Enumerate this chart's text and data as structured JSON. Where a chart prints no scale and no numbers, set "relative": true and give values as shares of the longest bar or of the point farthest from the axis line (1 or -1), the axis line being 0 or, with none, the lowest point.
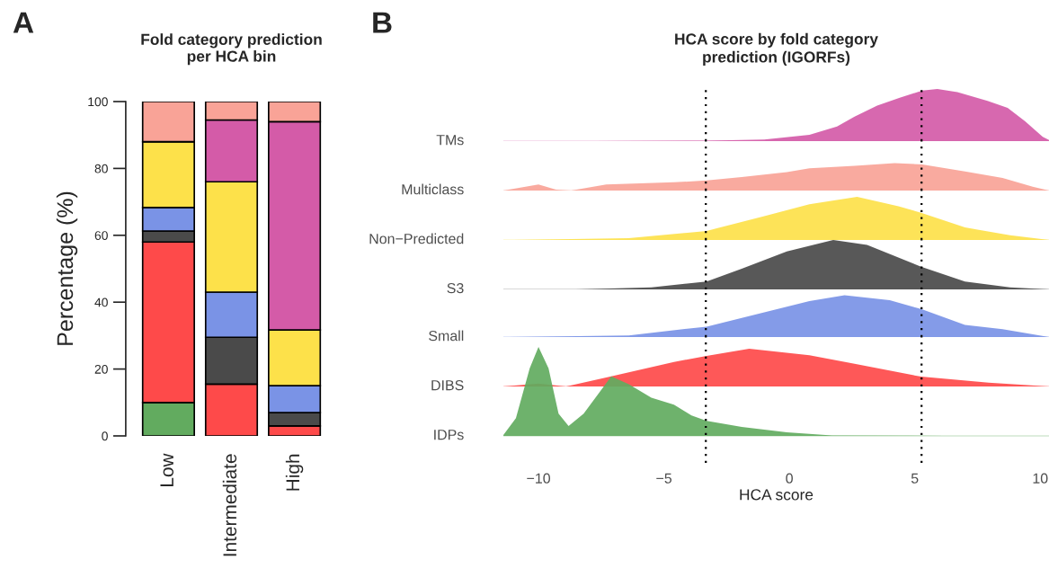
{
  "chart_data": [
    {
      "type": "bar",
      "title": "Fold category prediction\nper HCA bin",
      "ylabel": "Percentage (%)",
      "annotations": [
        "A"
      ],
      "stacked": true,
      "categories": [
        "Low",
        "Intermediate",
        "High"
      ],
      "ylim": [
        0,
        100
      ],
      "yticks": [
        0,
        20,
        40,
        60,
        80,
        100
      ],
      "series": [
        {
          "color": "#62ab5f",
          "values": [
            10,
            0,
            0
          ]
        },
        {
          "color": "#fe4a4a",
          "values": [
            48,
            15.5,
            3
          ]
        },
        {
          "color": "#4a4a4a",
          "values": [
            3.3,
            14,
            4
          ]
        },
        {
          "color": "#7a93e6",
          "values": [
            7,
            13.5,
            8
          ]
        },
        {
          "color": "#fde14a",
          "values": [
            19.7,
            33,
            16.7
          ]
        },
        {
          "color": "#d45ba8",
          "values": [
            0,
            18.5,
            62.3
          ]
        },
        {
          "color": "#f9a397",
          "values": [
            12,
            5.5,
            6
          ]
        }
      ]
    },
    {
      "type": "area",
      "relative": true,
      "title": "HCA score by fold category\nprediction (IGORFs)",
      "annotations": [
        "B"
      ],
      "xlim": [
        -11.4,
        10.35
      ],
      "tick_labels": false,
      "ref_lines": [
        {
          "axis": "x",
          "value": -3.33,
          "line_style": "dotted"
        },
        {
          "axis": "x",
          "value": 5.27,
          "line_style": "dotted"
        }
      ],
      "series": [
        {
          "name": "TMs",
          "color": "#d45ba8",
          "x": [
            -7.8,
            -3.3,
            -1,
            0.8,
            1.9,
            2.6,
            3.5,
            4.4,
            5.3,
            5.9,
            6.7,
            7.9,
            8.7,
            9.4,
            10.1,
            10.35
          ],
          "values": [
            0,
            0.01,
            0.03,
            0.12,
            0.28,
            0.47,
            0.68,
            0.83,
            0.97,
            1,
            0.94,
            0.77,
            0.64,
            0.38,
            0.08,
            0.02
          ]
        }
      ]
    },
    {
      "type": "area",
      "relative": true,
      "xlim": [
        -11.4,
        10.35
      ],
      "tick_labels": false,
      "ref_lines": [
        {
          "axis": "x",
          "value": -3.33,
          "line_style": "dotted"
        },
        {
          "axis": "x",
          "value": 5.27,
          "line_style": "dotted"
        }
      ],
      "series": [
        {
          "name": "Multiclass",
          "color": "#f9a397",
          "x": [
            -11.4,
            -10,
            -9.3,
            -8.7,
            -7.3,
            -4.6,
            -3.3,
            -1.9,
            -0.1,
            0.8,
            2.6,
            4.2,
            5.3,
            7.0,
            8.5,
            9.7,
            10.35
          ],
          "values": [
            0,
            0.22,
            0.03,
            0,
            0.22,
            0.3,
            0.37,
            0.49,
            0.67,
            0.81,
            0.9,
            1,
            0.95,
            0.7,
            0.46,
            0.14,
            0
          ]
        }
      ]
    },
    {
      "type": "area",
      "relative": true,
      "xlim": [
        -11.4,
        10.35
      ],
      "tick_labels": false,
      "ref_lines": [
        {
          "axis": "x",
          "value": -3.33,
          "line_style": "dotted"
        },
        {
          "axis": "x",
          "value": 5.27,
          "line_style": "dotted"
        }
      ],
      "series": [
        {
          "name": "Non−Predicted",
          "color": "#fde14a",
          "x": [
            -11,
            -6.4,
            -3.3,
            -1,
            0.8,
            2.7,
            4.35,
            5.25,
            7,
            8.8,
            10.35
          ],
          "values": [
            0,
            0.04,
            0.21,
            0.55,
            0.83,
            1,
            0.78,
            0.63,
            0.29,
            0.11,
            0
          ]
        }
      ]
    },
    {
      "type": "area",
      "relative": true,
      "xlim": [
        -11.4,
        10.35
      ],
      "tick_labels": false,
      "ref_lines": [
        {
          "axis": "x",
          "value": -3.33,
          "line_style": "dotted"
        },
        {
          "axis": "x",
          "value": 5.27,
          "line_style": "dotted"
        }
      ],
      "series": [
        {
          "name": "S3",
          "color": "#4a4a4a",
          "x": [
            -8.5,
            -5.5,
            -3.3,
            -1.9,
            -0.1,
            1.75,
            3.1,
            5.25,
            7,
            8.8,
            10.35
          ],
          "values": [
            0,
            0.04,
            0.16,
            0.42,
            0.77,
            1,
            0.9,
            0.46,
            0.16,
            0.04,
            0
          ]
        }
      ]
    },
    {
      "type": "area",
      "relative": true,
      "xlim": [
        -11.4,
        10.35
      ],
      "tick_labels": false,
      "ref_lines": [
        {
          "axis": "x",
          "value": -3.33,
          "line_style": "dotted"
        },
        {
          "axis": "x",
          "value": 5.27,
          "line_style": "dotted"
        }
      ],
      "series": [
        {
          "name": "Small",
          "color": "#7a93e6",
          "x": [
            -11.2,
            -6.4,
            -3.3,
            -1,
            0.8,
            2.2,
            4,
            5.25,
            7,
            8.5,
            10.35
          ],
          "values": [
            0,
            0.04,
            0.25,
            0.59,
            0.86,
            1,
            0.88,
            0.67,
            0.29,
            0.19,
            0
          ]
        }
      ]
    },
    {
      "type": "area",
      "relative": true,
      "xlim": [
        -11.4,
        10.35
      ],
      "tick_labels": false,
      "ref_lines": [
        {
          "axis": "x",
          "value": -3.33,
          "line_style": "dotted"
        },
        {
          "axis": "x",
          "value": 5.27,
          "line_style": "dotted"
        }
      ],
      "series": [
        {
          "name": "DIBS",
          "color": "#fe4a4a",
          "x": [
            -11.4,
            -10,
            -8.9,
            -7.3,
            -4.6,
            -3.3,
            -1.6,
            0.8,
            2.6,
            5.25,
            7.94,
            10.35
          ],
          "values": [
            0,
            0.08,
            0,
            0.24,
            0.65,
            0.81,
            1,
            0.83,
            0.6,
            0.26,
            0.1,
            0
          ]
        }
      ]
    },
    {
      "type": "area",
      "relative": true,
      "xlabel": "HCA score",
      "xlim": [
        -11.4,
        10.35
      ],
      "xticks": [
        {
          "value": -10,
          "label": "−10"
        },
        {
          "value": -5,
          "label": "−5"
        },
        0,
        5,
        10
      ],
      "tick_labels": "x",
      "ref_lines": [
        {
          "axis": "x",
          "value": -3.33,
          "line_style": "dotted"
        },
        {
          "axis": "x",
          "value": 5.27,
          "line_style": "dotted"
        }
      ],
      "series": [
        {
          "name": "IDPs",
          "color": "#62ab5f",
          "x": [
            -11.4,
            -10.9,
            -10.35,
            -10,
            -9.6,
            -9.2,
            -8.8,
            -8.2,
            -7.1,
            -6.4,
            -5.5,
            -4.6,
            -3.9,
            -3.3,
            -1.9,
            -0.1,
            1.7,
            6.2,
            10.35
          ],
          "values": [
            0.01,
            0.2,
            0.76,
            1,
            0.76,
            0.25,
            0.11,
            0.25,
            0.67,
            0.58,
            0.43,
            0.35,
            0.23,
            0.17,
            0.1,
            0.04,
            0.005,
            0,
            0
          ]
        }
      ]
    }
  ]
}
